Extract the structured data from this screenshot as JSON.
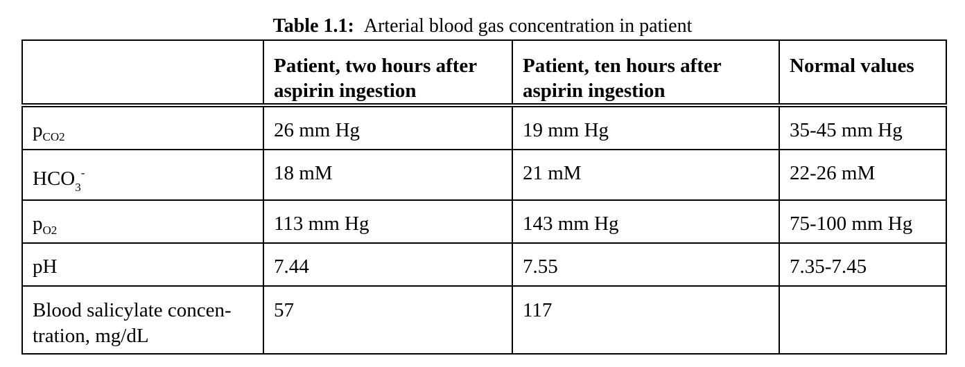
{
  "caption": {
    "label": "Table 1.1",
    "separator": ":",
    "text": "Arterial blood gas concentration in patient"
  },
  "table": {
    "headers": {
      "corner": "",
      "col1": "Patient, two hours after aspirin ingestion",
      "col2": "Patient, ten hours after aspirin ingestion",
      "col3": "Normal values"
    },
    "rows": {
      "pco2": {
        "base": "p",
        "sub": "CO2",
        "two_hours": "26 mm Hg",
        "ten_hours": "19 mm Hg",
        "normal": "35-45 mm Hg"
      },
      "hco3": {
        "base": "HCO",
        "sub": "3",
        "sup": "-",
        "two_hours": "18 mM",
        "ten_hours": "21 mM",
        "normal": "22-26 mM"
      },
      "po2": {
        "base": "p",
        "sub": "O2",
        "two_hours": "113 mm Hg",
        "ten_hours": "143 mm Hg",
        "normal": "75-100 mm Hg"
      },
      "ph": {
        "label": "pH",
        "two_hours": "7.44",
        "ten_hours": "7.55",
        "normal": "7.35-7.45"
      },
      "salicylate": {
        "label": "Blood salicylate concen-tration, mg/dL",
        "two_hours": "57",
        "ten_hours": "117",
        "normal": ""
      }
    }
  }
}
